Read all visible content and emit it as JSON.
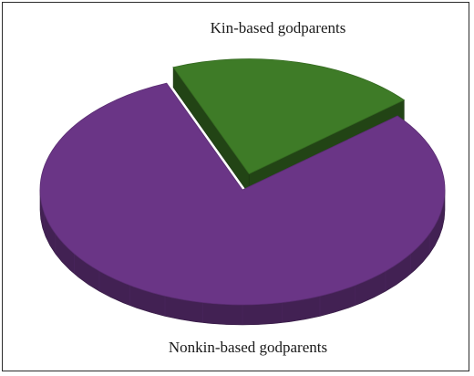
{
  "chart_data": {
    "type": "pie",
    "title": "",
    "slices": [
      {
        "label": "Kin-based godparents",
        "value": 20,
        "color": "#3e7b27",
        "exploded": true
      },
      {
        "label": "Nonkin-based godparents",
        "value": 80,
        "color": "#6a3586",
        "exploded": false
      }
    ],
    "three_d": true,
    "legend": "none"
  }
}
